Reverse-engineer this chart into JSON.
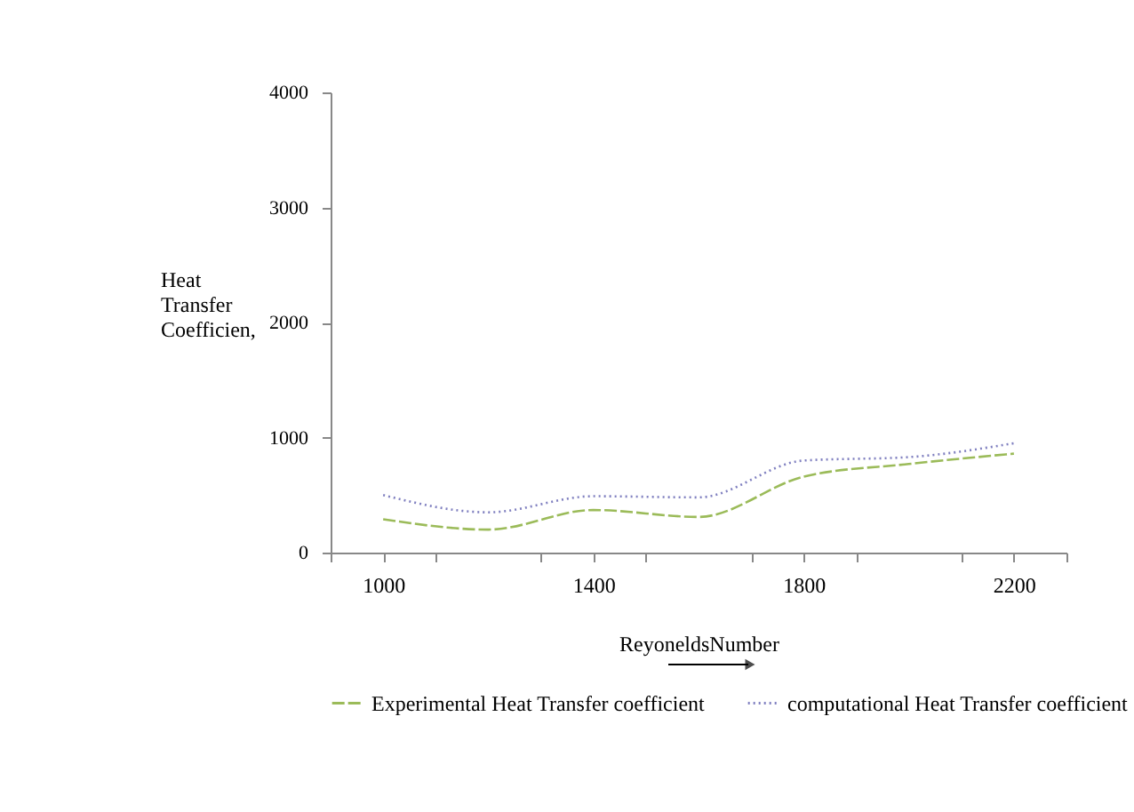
{
  "chart_data": {
    "type": "line",
    "xlabel": "ReyoneldsNumber",
    "ylabel": "Heat Transfer Coefficien,",
    "x": [
      1000,
      1200,
      1400,
      1600,
      1800,
      2000,
      2200
    ],
    "series": [
      {
        "name": "Experimental Heat Transfer coefficient",
        "color": "#9bbb59",
        "line_style": "dashed",
        "values": [
          290,
          200,
          370,
          310,
          660,
          770,
          860
        ]
      },
      {
        "name": "computational Heat Transfer coefficient",
        "color": "#8080c0",
        "line_style": "dotted",
        "values": [
          500,
          350,
          490,
          480,
          800,
          830,
          950
        ]
      }
    ],
    "xlim": [
      900,
      2300
    ],
    "xticks": [
      {
        "value": 900,
        "label": null
      },
      1000,
      {
        "value": 1100,
        "label": null
      },
      {
        "value": 1300,
        "label": null
      },
      1400,
      {
        "value": 1500,
        "label": null
      },
      {
        "value": 1700,
        "label": null
      },
      1800,
      {
        "value": 1900,
        "label": null
      },
      {
        "value": 2100,
        "label": null
      },
      2200,
      {
        "value": 2300,
        "label": null
      }
    ],
    "ylim": [
      0,
      4000
    ],
    "yticks": [
      0,
      1000,
      2000,
      3000,
      4000
    ],
    "grid": false,
    "legend": "bottom",
    "marker": "none"
  }
}
